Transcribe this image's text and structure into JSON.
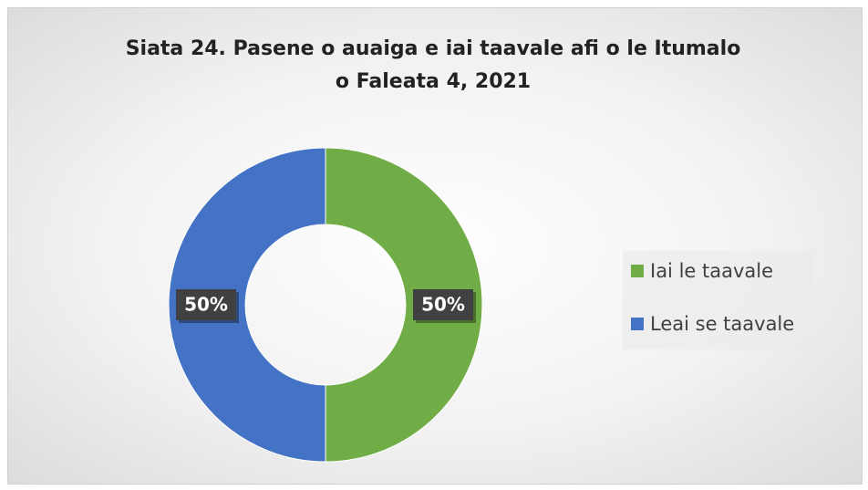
{
  "chart_data": {
    "type": "donut",
    "title": "Siata 24. Pasene o auaiga e iai taavale afi o le Itumalo o Faleata 4, 2021",
    "categories": [
      "Iai le taavale",
      "Leai se taavale"
    ],
    "values": [
      50,
      50
    ],
    "value_labels": [
      "50%",
      "50%"
    ],
    "colors": [
      "#70ad47",
      "#4472c4"
    ],
    "legend": "right"
  }
}
